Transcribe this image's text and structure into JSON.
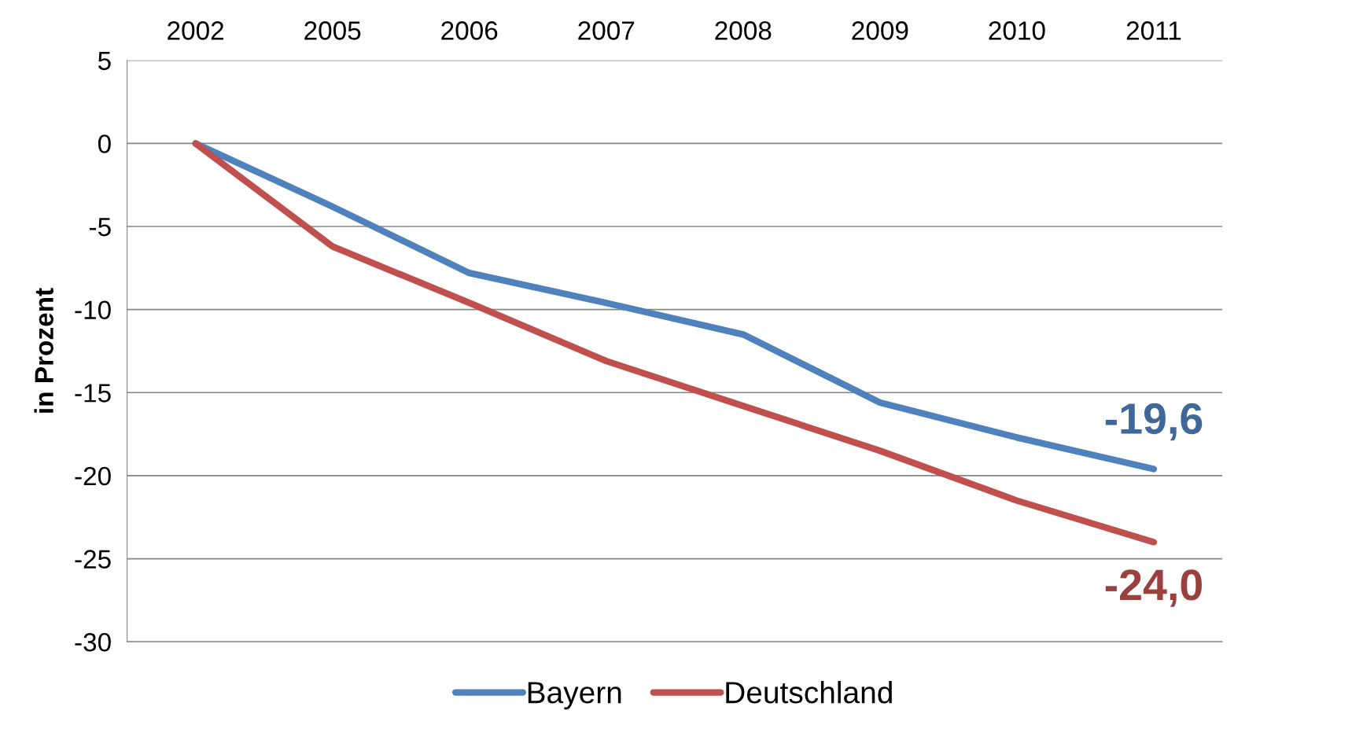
{
  "chart_data": {
    "type": "line",
    "ylabel": "in Prozent",
    "categories": [
      "2002",
      "2005",
      "2006",
      "2007",
      "2008",
      "2009",
      "2010",
      "2011"
    ],
    "series": [
      {
        "name": "Bayern",
        "color": "#4f81bd",
        "values": [
          0,
          -3.8,
          -7.8,
          -9.6,
          -11.5,
          -15.6,
          -17.7,
          -19.6
        ]
      },
      {
        "name": "Deutschland",
        "color": "#c0504d",
        "values": [
          0,
          -6.2,
          -9.6,
          -13.1,
          -15.8,
          -18.5,
          -21.5,
          -24.0
        ]
      }
    ],
    "ylim": [
      -30,
      5
    ],
    "yticks": [
      -30,
      -25,
      -20,
      -15,
      -10,
      -5,
      0,
      5
    ],
    "grid": "y",
    "legend": "bottom",
    "marker": "none",
    "line_style": "solid",
    "annotations": [
      {
        "text": "-19,6",
        "x": "2011",
        "y": -19.6
      },
      {
        "text": "-24,0",
        "x": "2011",
        "y": -24.0
      }
    ]
  }
}
